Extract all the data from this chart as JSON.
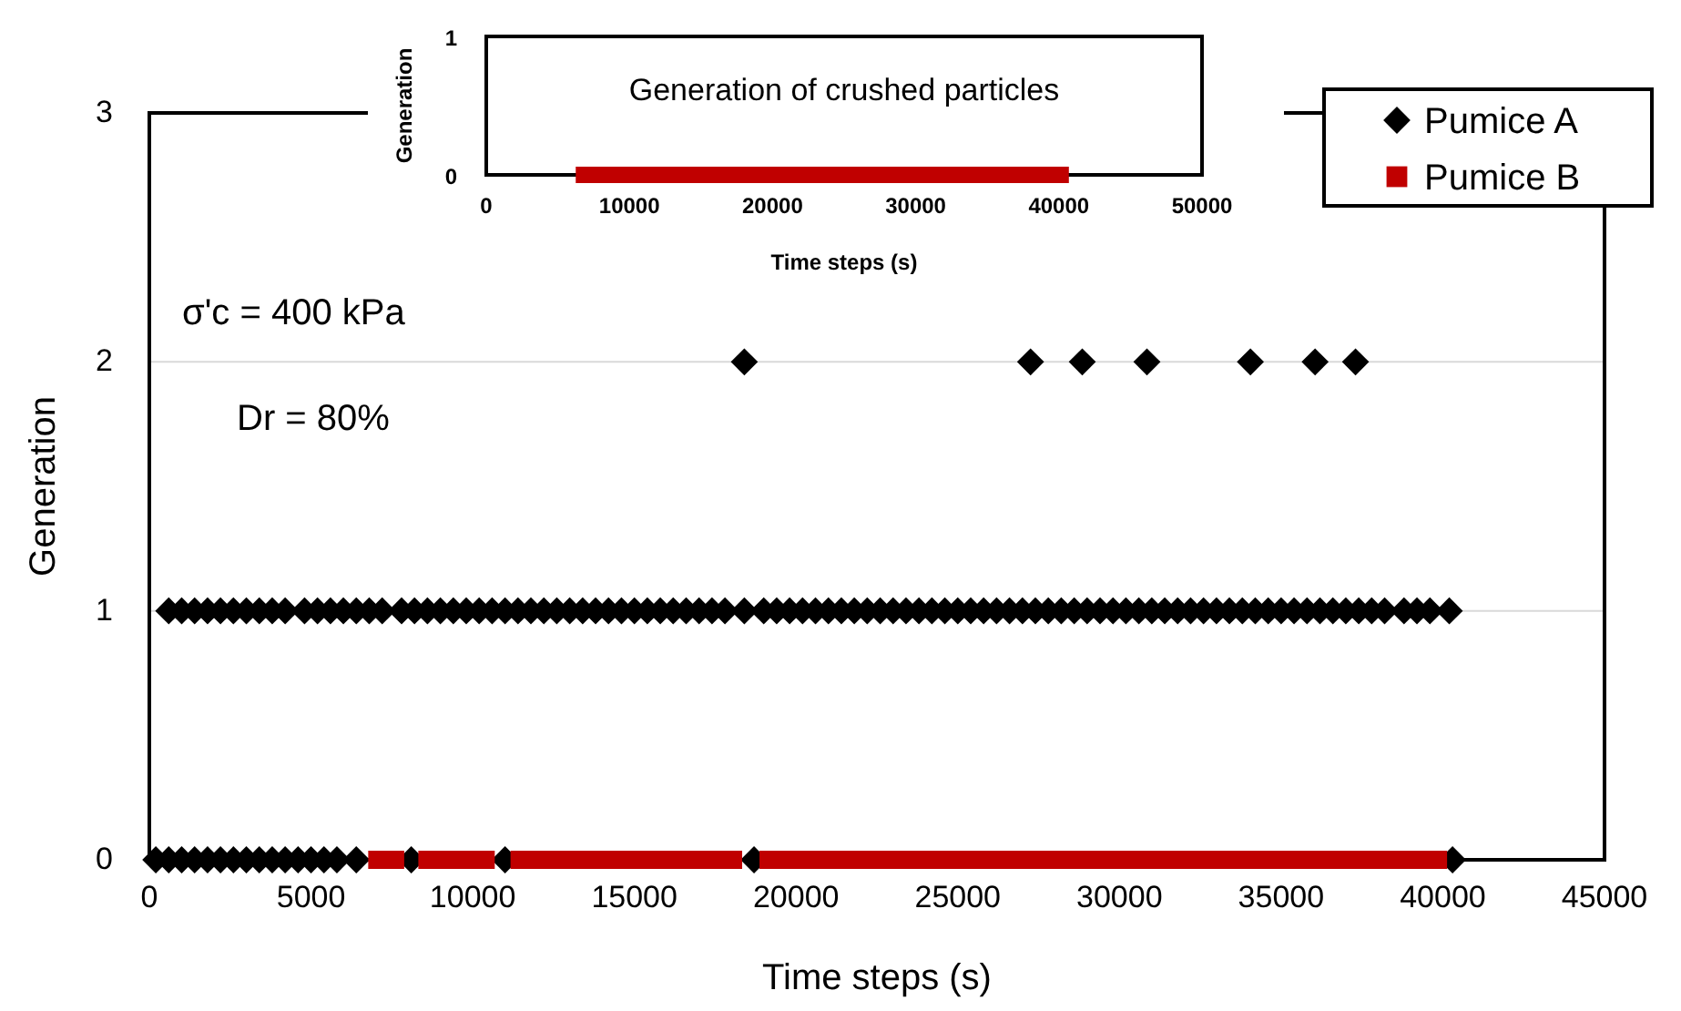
{
  "chart_data": [
    {
      "type": "scatter",
      "xlabel": "Time steps (s)",
      "ylabel": "Generation",
      "xlim": [
        0,
        45000
      ],
      "ylim": [
        0,
        3
      ],
      "xticks": [
        0,
        5000,
        10000,
        15000,
        20000,
        25000,
        30000,
        35000,
        40000,
        45000
      ],
      "yticks": [
        0,
        1,
        2,
        3
      ],
      "grid": "y",
      "legend": "top right",
      "annotations": [
        "σ'c = 400 kPa",
        "Dr = 80%"
      ],
      "series": [
        {
          "name": "Pumice A",
          "color": "#000000",
          "marker": "diamond",
          "x": [
            18400,
            27250,
            28850,
            30850,
            34050,
            36050,
            37300,
            600,
            1000,
            1400,
            1800,
            2200,
            2600,
            3000,
            3400,
            3800,
            4200,
            4800,
            5200,
            5600,
            6000,
            6400,
            6800,
            7200,
            7800,
            8200,
            8600,
            9000,
            9400,
            9800,
            10200,
            10600,
            11000,
            11400,
            11800,
            12200,
            12600,
            13000,
            13400,
            13800,
            14200,
            14600,
            15000,
            15400,
            15800,
            16200,
            16600,
            17000,
            17400,
            17800,
            18400,
            19000,
            19400,
            19800,
            20200,
            20600,
            21000,
            21400,
            21800,
            22200,
            22600,
            23000,
            23400,
            23800,
            24200,
            24600,
            25000,
            25400,
            25800,
            26200,
            26600,
            27000,
            27400,
            27800,
            28200,
            28600,
            29000,
            29400,
            29800,
            30200,
            30600,
            31000,
            31400,
            31800,
            32200,
            32600,
            33000,
            33400,
            33800,
            34200,
            34600,
            35000,
            35400,
            35800,
            36200,
            36600,
            37000,
            37400,
            37800,
            38200,
            38800,
            39200,
            39600,
            40200,
            200,
            600,
            1000,
            1400,
            1800,
            2200,
            2600,
            3000,
            3400,
            3800,
            4200,
            4600,
            5000,
            5400,
            5800,
            6400,
            8100,
            11000,
            18700,
            40300
          ],
          "values": [
            2,
            2,
            2,
            2,
            2,
            2,
            2,
            1,
            1,
            1,
            1,
            1,
            1,
            1,
            1,
            1,
            1,
            1,
            1,
            1,
            1,
            1,
            1,
            1,
            1,
            1,
            1,
            1,
            1,
            1,
            1,
            1,
            1,
            1,
            1,
            1,
            1,
            1,
            1,
            1,
            1,
            1,
            1,
            1,
            1,
            1,
            1,
            1,
            1,
            1,
            1,
            1,
            1,
            1,
            1,
            1,
            1,
            1,
            1,
            1,
            1,
            1,
            1,
            1,
            1,
            1,
            1,
            1,
            1,
            1,
            1,
            1,
            1,
            1,
            1,
            1,
            1,
            1,
            1,
            1,
            1,
            1,
            1,
            1,
            1,
            1,
            1,
            1,
            1,
            1,
            1,
            1,
            1,
            1,
            1,
            1,
            1,
            1,
            1,
            1,
            1,
            1,
            1,
            1,
            0,
            0,
            0,
            0,
            0,
            0,
            0,
            0,
            0,
            0,
            0,
            0,
            0,
            0,
            0,
            0,
            0,
            0,
            0,
            0
          ]
        },
        {
          "name": "Pumice B",
          "color": "#c00000",
          "marker": "square",
          "x": [
            7050,
            7600,
            8600,
            8900,
            9200,
            9500,
            9800,
            10100,
            10400,
            11450,
            11750,
            12050,
            12350,
            12650,
            12950,
            13250,
            13550,
            13850,
            14150,
            14450,
            14750,
            15050,
            15350,
            15650,
            15950,
            16250,
            16550,
            16850,
            17150,
            17450,
            17750,
            18050,
            19150,
            19450,
            19750,
            20050,
            20350,
            20650,
            20950,
            21250,
            21550,
            21850,
            22150,
            22450,
            22750,
            23050,
            23350,
            23650,
            23950,
            24250,
            24550,
            24850,
            25150,
            25450,
            25750,
            26050,
            26350,
            26650,
            26950,
            27250,
            27550,
            27850,
            28150,
            28450,
            28750,
            29050,
            29350,
            29650,
            29950,
            30250,
            30550,
            30850,
            31150,
            31450,
            31750,
            32050,
            32350,
            32650,
            32950,
            33250,
            33550,
            33850,
            34150,
            34450,
            34750,
            35050,
            35350,
            35650,
            35950,
            36250,
            36550,
            36850,
            37150,
            37450,
            37750,
            38050,
            38350,
            38650,
            38950,
            39250,
            39550,
            39850
          ],
          "values": [
            0,
            0,
            0,
            0,
            0,
            0,
            0,
            0,
            0,
            0,
            0,
            0,
            0,
            0,
            0,
            0,
            0,
            0,
            0,
            0,
            0,
            0,
            0,
            0,
            0,
            0,
            0,
            0,
            0,
            0,
            0,
            0,
            0,
            0,
            0,
            0,
            0,
            0,
            0,
            0,
            0,
            0,
            0,
            0,
            0,
            0,
            0,
            0,
            0,
            0,
            0,
            0,
            0,
            0,
            0,
            0,
            0,
            0,
            0,
            0,
            0,
            0,
            0,
            0,
            0,
            0,
            0,
            0,
            0,
            0,
            0,
            0,
            0,
            0,
            0,
            0,
            0,
            0,
            0,
            0,
            0,
            0,
            0,
            0,
            0,
            0,
            0,
            0,
            0,
            0,
            0,
            0,
            0,
            0,
            0,
            0,
            0,
            0,
            0,
            0,
            0,
            0
          ]
        }
      ]
    },
    {
      "type": "line",
      "title": "Generation of crushed particles",
      "xlabel": "Time steps (s)",
      "ylabel": "Generation",
      "xlim": [
        0,
        50000
      ],
      "ylim": [
        0,
        1
      ],
      "xticks": [
        0,
        10000,
        20000,
        30000,
        40000,
        50000
      ],
      "yticks": [
        0,
        1
      ],
      "series": [
        {
          "color": "#c00000",
          "x": [
            6250,
            40700
          ],
          "values": [
            0,
            0
          ]
        }
      ]
    }
  ]
}
